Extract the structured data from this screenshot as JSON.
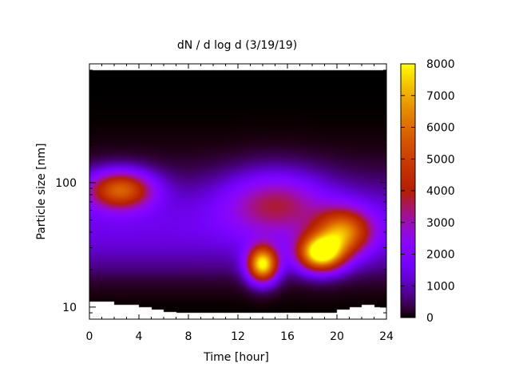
{
  "chart_data": {
    "type": "heatmap",
    "title": "dN / d log d (3/19/19)",
    "xlabel": "Time [hour]",
    "ylabel": "Particle size [nm]",
    "x_range": [
      0,
      24
    ],
    "y_range": [
      8,
      900
    ],
    "y_scale": "log",
    "x_ticks": [
      0,
      4,
      8,
      12,
      16,
      20,
      24
    ],
    "x_tick_labels": [
      "0",
      "4",
      "8",
      "12",
      "16",
      "20",
      "24"
    ],
    "y_ticks": [
      10,
      100
    ],
    "y_tick_labels": [
      "10",
      "100"
    ],
    "colorbar": {
      "colormap": "gnuplot",
      "range": [
        0,
        8000
      ],
      "ticks": [
        0,
        1000,
        2000,
        3000,
        4000,
        5000,
        6000,
        7000,
        8000
      ],
      "tick_labels": [
        "0",
        "1000",
        "2000",
        "3000",
        "4000",
        "5000",
        "6000",
        "7000",
        "8000"
      ]
    },
    "size_range_nm": [
      9,
      800
    ],
    "lower_size_limit_by_hour": [
      [
        0,
        11
      ],
      [
        1,
        11
      ],
      [
        2,
        10.5
      ],
      [
        3,
        10.5
      ],
      [
        4,
        10
      ],
      [
        5,
        9.5
      ],
      [
        6,
        9.2
      ],
      [
        7,
        9
      ],
      [
        8,
        9
      ],
      [
        9,
        9
      ],
      [
        10,
        9
      ],
      [
        11,
        9
      ],
      [
        12,
        9
      ],
      [
        13,
        9
      ],
      [
        14,
        9
      ],
      [
        15,
        9
      ],
      [
        16,
        9
      ],
      [
        17,
        9
      ],
      [
        18,
        9
      ],
      [
        19,
        9
      ],
      [
        20,
        9.5
      ],
      [
        21,
        10
      ],
      [
        22,
        10.5
      ],
      [
        23,
        10
      ],
      [
        24,
        10
      ]
    ],
    "features": [
      {
        "t": 2.5,
        "d": 88,
        "peak": 5000,
        "t_width": 2.6,
        "logd_width": 0.15
      },
      {
        "t": 14.0,
        "d": 22,
        "peak": 7400,
        "t_width": 1.2,
        "logd_width": 0.14
      },
      {
        "t": 18.7,
        "d": 27,
        "peak": 7600,
        "t_width": 1.8,
        "logd_width": 0.14
      },
      {
        "t": 20.5,
        "d": 40,
        "peak": 5000,
        "t_width": 2.2,
        "logd_width": 0.18
      },
      {
        "t": 15.0,
        "d": 70,
        "peak": 2500,
        "t_width": 4.0,
        "logd_width": 0.25
      }
    ]
  }
}
